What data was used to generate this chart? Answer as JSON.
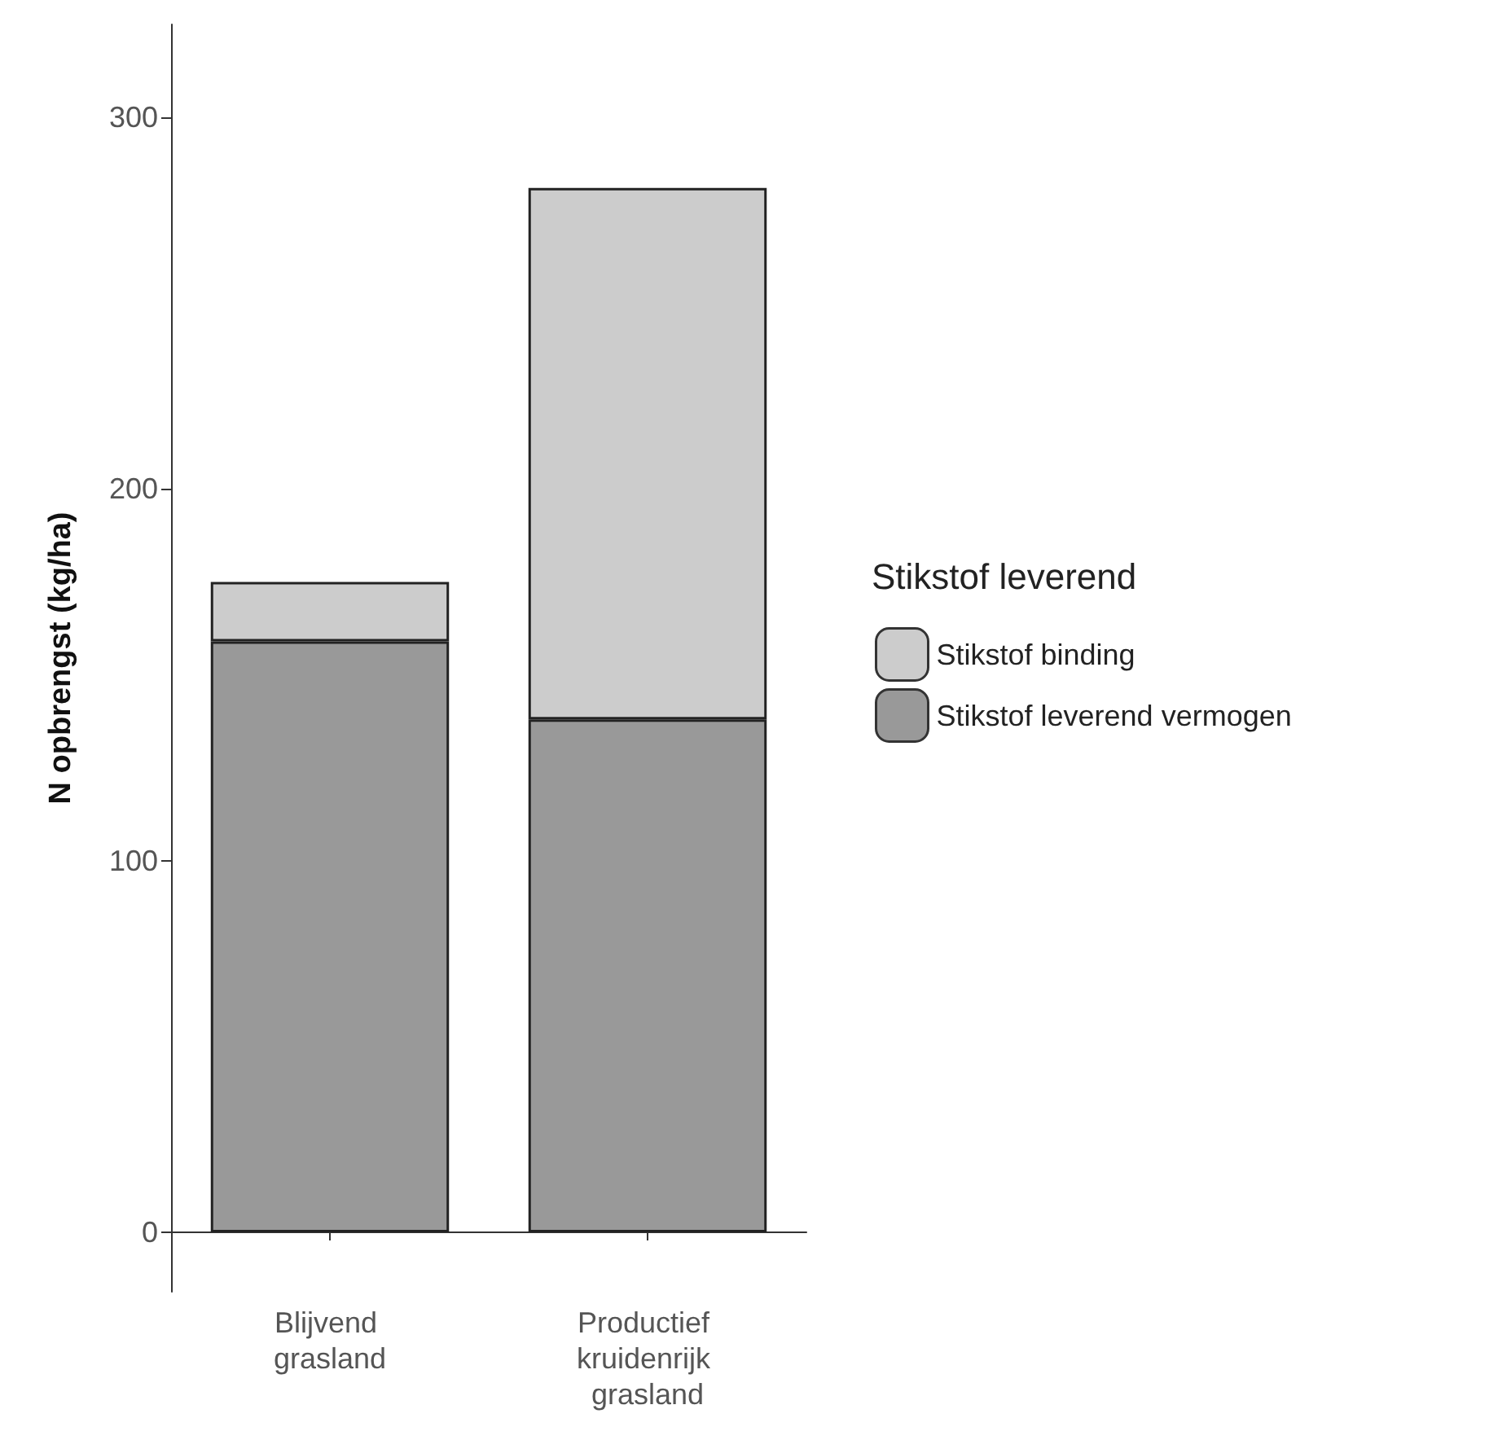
{
  "chart_data": {
    "type": "bar",
    "ylabel": "N opbrengst (kg/ha)",
    "legend_title": "Stikstof leverend",
    "categories": [
      "Blijvend grasland",
      "Productief kruidenrijk grasland"
    ],
    "series": [
      {
        "name": "Stikstof leverend vermogen",
        "color": "#999999",
        "values": [
          159,
          138
        ]
      },
      {
        "name": "Stikstof binding",
        "color": "#cccccc",
        "values": [
          16,
          143
        ]
      }
    ],
    "stacked": true,
    "ylim": [
      -16,
      325
    ],
    "yticks": [
      0,
      100,
      200,
      300
    ],
    "grid": false,
    "legend": "right"
  }
}
